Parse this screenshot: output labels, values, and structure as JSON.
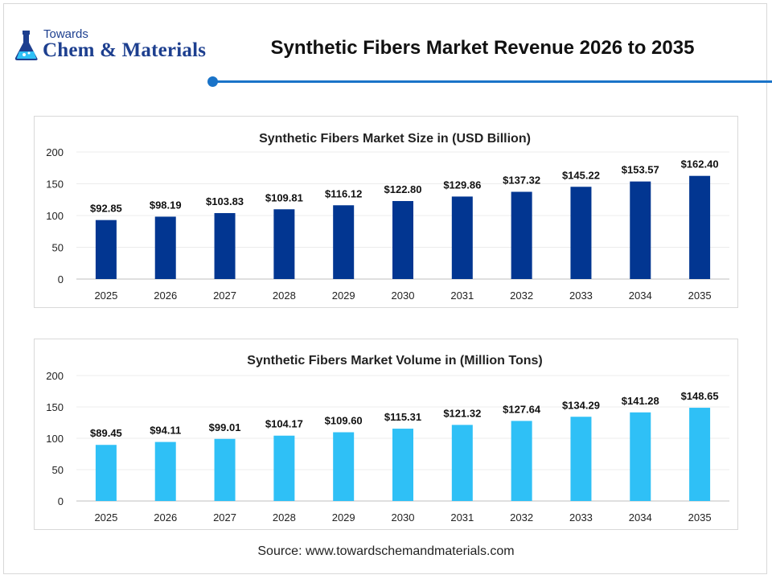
{
  "brand": {
    "small_text": "Towards",
    "main_text": "Chem & Materials"
  },
  "page_title": "Synthetic Fibers Market Revenue 2026 to 2035",
  "source_text": "Source: www.towardschemandmaterials.com",
  "colors": {
    "accent": "#1a73c8",
    "brand_text": "#1d3f8f",
    "bar_size": "#023691",
    "bar_volume": "#2fc0f6"
  },
  "chart_data": [
    {
      "type": "bar",
      "title": "Synthetic Fibers Market Size in (USD Billion)",
      "categories": [
        "2025",
        "2026",
        "2027",
        "2028",
        "2029",
        "2030",
        "2031",
        "2032",
        "2033",
        "2034",
        "2035"
      ],
      "values": [
        92.85,
        98.19,
        103.83,
        109.81,
        116.12,
        122.8,
        129.86,
        137.32,
        145.22,
        153.57,
        162.4
      ],
      "data_labels": [
        "$92.85",
        "$98.19",
        "$103.83",
        "$109.81",
        "$116.12",
        "$122.80",
        "$129.86",
        "$137.32",
        "$145.22",
        "$153.57",
        "$162.40"
      ],
      "ylim": [
        0,
        200
      ],
      "yticks": [
        "0",
        "50",
        "100",
        "150",
        "200"
      ],
      "grid": true,
      "legend": "none",
      "color": "#023691"
    },
    {
      "type": "bar",
      "title": "Synthetic Fibers Market Volume in (Million Tons)",
      "categories": [
        "2025",
        "2026",
        "2027",
        "2028",
        "2029",
        "2030",
        "2031",
        "2032",
        "2033",
        "2034",
        "2035"
      ],
      "values": [
        89.45,
        94.11,
        99.01,
        104.17,
        109.6,
        115.31,
        121.32,
        127.64,
        134.29,
        141.28,
        148.65
      ],
      "data_labels": [
        "$89.45",
        "$94.11",
        "$99.01",
        "$104.17",
        "$109.60",
        "$115.31",
        "$121.32",
        "$127.64",
        "$134.29",
        "$141.28",
        "$148.65"
      ],
      "ylim": [
        0,
        200
      ],
      "yticks": [
        "0",
        "50",
        "100",
        "150",
        "200"
      ],
      "grid": true,
      "legend": "none",
      "color": "#2fc0f6"
    }
  ]
}
